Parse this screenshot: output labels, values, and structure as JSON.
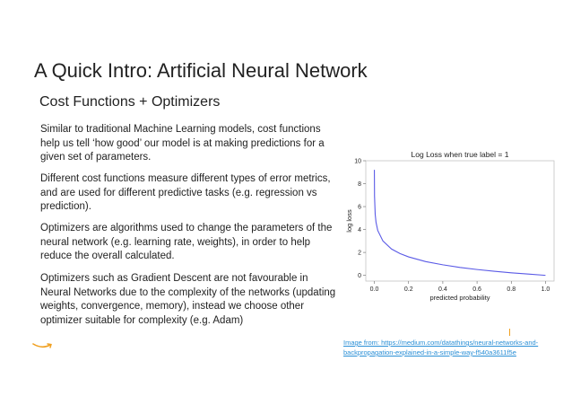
{
  "slide": {
    "title": "A Quick Intro: Artificial Neural Network",
    "subtitle": "Cost Functions + Optimizers",
    "paragraphs": [
      "Similar to traditional Machine Learning models, cost functions help us tell ‘how good’ our model is at making predictions for a given set of parameters.",
      "Different cost functions measure different types of error metrics, and are used for different predictive tasks (e.g. regression vs prediction).",
      "Optimizers are algorithms used to change the parameters of the neural network (e.g. learning rate, weights), in order to help reduce the overall calculated.",
      "Optimizers such as Gradient Descent are not favourable in Neural Networks due to the complexity of the networks (updating weights, convergence, memory), instead we choose other optimizer suitable for complexity (e.g. Adam)"
    ],
    "caption": "Image from: https://medium.com/datathings/neural-networks-and-backpropagation-explained-in-a-simple-way-f540a3611f5e",
    "logo_icon": "amazon-smile-logo-icon",
    "accent_color": "#f0a020",
    "link_color": "#2a8fd6"
  },
  "chart_data": {
    "type": "line",
    "title": "Log Loss when true label = 1",
    "xlabel": "predicted probability",
    "ylabel": "log loss",
    "xlim": [
      -0.05,
      1.05
    ],
    "ylim": [
      -0.5,
      10
    ],
    "xticks": [
      "0.0",
      "0.2",
      "0.4",
      "0.6",
      "0.8",
      "1.0"
    ],
    "yticks": [
      "0",
      "2",
      "4",
      "6",
      "8",
      "10"
    ],
    "line_color": "#5a5ae6",
    "series": [
      {
        "x": [
          0.0001,
          0.001,
          0.005,
          0.01,
          0.02,
          0.05,
          0.1,
          0.15,
          0.2,
          0.3,
          0.4,
          0.5,
          0.6,
          0.7,
          0.8,
          0.9,
          1.0
        ],
        "values": [
          9.21,
          6.91,
          5.3,
          4.61,
          3.91,
          3.0,
          2.3,
          1.9,
          1.61,
          1.2,
          0.92,
          0.69,
          0.51,
          0.36,
          0.22,
          0.11,
          0.0
        ]
      }
    ]
  }
}
